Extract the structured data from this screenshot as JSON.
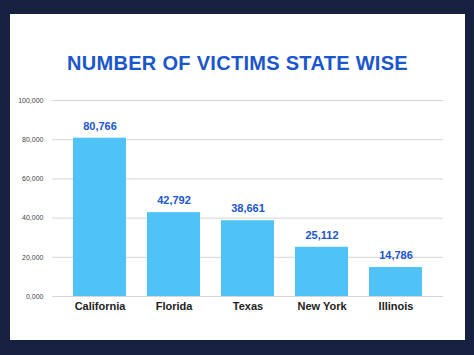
{
  "chart_data": {
    "type": "bar",
    "title": "NUMBER OF VICTIMS STATE WISE",
    "categories": [
      "California",
      "Florida",
      "Texas",
      "New York",
      "Illinois"
    ],
    "values": [
      80766,
      42792,
      38661,
      25112,
      14786
    ],
    "value_labels": [
      "80,766",
      "42,792",
      "38,661",
      "25,112",
      "14,786"
    ],
    "color": "#4fc3f7",
    "ylim": [
      0,
      100000
    ],
    "yticks": [
      {
        "value": 0,
        "label": "0,000"
      },
      {
        "value": 20000,
        "label": "20,000"
      },
      {
        "value": 40000,
        "label": "40,000"
      },
      {
        "value": 60000,
        "label": "60,000"
      },
      {
        "value": 80000,
        "label": "80,000"
      },
      {
        "value": 100000,
        "label": "100,000"
      }
    ],
    "grid": true,
    "data_labels": true
  }
}
